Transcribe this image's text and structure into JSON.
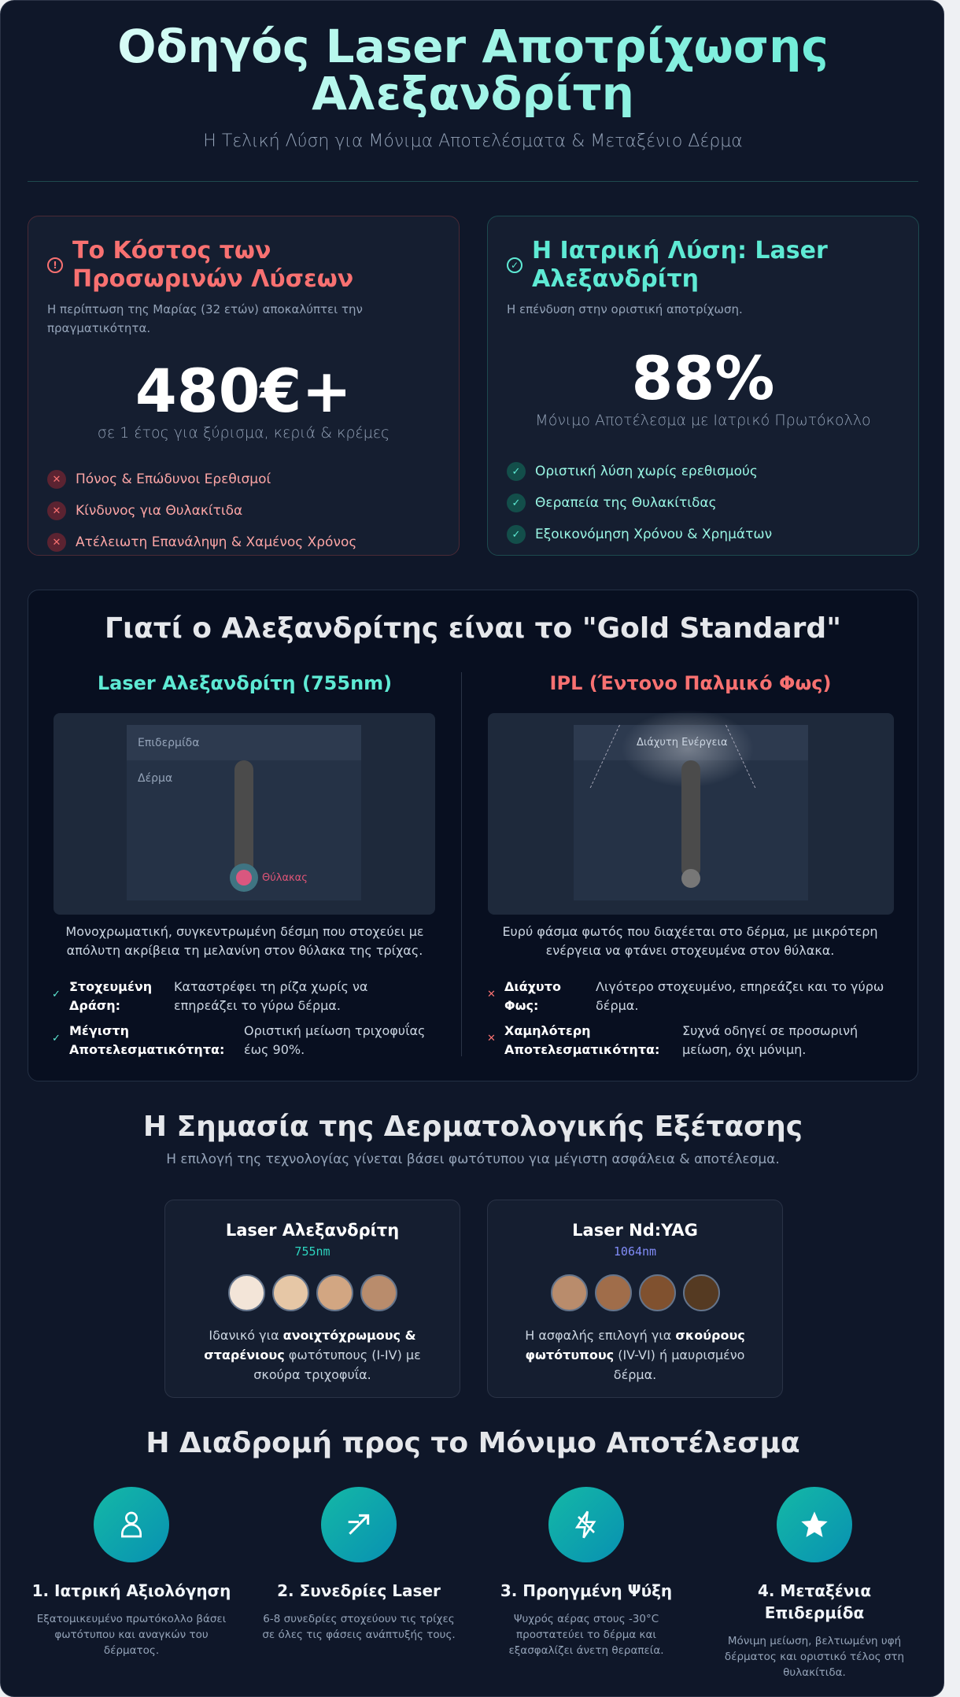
{
  "header": {
    "title": "Οδηγός Laser Αποτρίχωσης Αλεξανδρίτη",
    "subtitle": "Η Τελική Λύση για Μόνιμα Αποτελέσματα & Μεταξένιο Δέρμα"
  },
  "cost_card": {
    "icon": "alert-circle-icon",
    "title": "Το Κόστος των Προσωρινών Λύσεων",
    "desc": "Η περίπτωση της Μαρίας (32 ετών) αποκαλύπτει την πραγματικότητα.",
    "stat": "480€+",
    "stat_label": "σε 1 έτος για ξύρισμα, κεριά & κρέμες",
    "items": [
      "Πόνος & Επώδυνοι Ερεθισμοί",
      "Κίνδυνος για Θυλακίτιδα",
      "Ατέλειωτη Επανάληψη & Χαμένος Χρόνος"
    ],
    "color": "#f87171"
  },
  "solution_card": {
    "icon": "check-circle-icon",
    "title": "Η Ιατρική Λύση: Laser Αλεξανδρίτη",
    "desc": "Η επένδυση στην οριστική αποτρίχωση.",
    "stat": "88%",
    "stat_label": "Μόνιμο Αποτέλεσμα με Ιατρικό Πρωτόκολλο",
    "items": [
      "Οριστική λύση χωρίς ερεθισμούς",
      "Θεραπεία της Θυλακίτιδας",
      "Εξοικονόμηση Χρόνου & Χρημάτων"
    ],
    "color": "#5eead4"
  },
  "comparison": {
    "title": "Γιατί ο Αλεξανδρίτης είναι το \"Gold Standard\"",
    "laser": {
      "title": "Laser Αλεξανδρίτη (755nm)",
      "diagram": {
        "epidermis": "Επιδερμίδα",
        "dermis": "Δέρμα",
        "follicle": "Θύλακας"
      },
      "desc": "Μονοχρωματική, συγκεντρωμένη δέσμη που στοχεύει με απόλυτη ακρίβεια τη μελανίνη στον θύλακα της τρίχας.",
      "features": [
        {
          "label": "Στοχευμένη Δράση:",
          "text": "Καταστρέφει τη ρίζα χωρίς να επηρεάζει το γύρω δέρμα."
        },
        {
          "label": "Μέγιστη Αποτελεσματικότητα:",
          "text": "Οριστική μείωση τριχοφυΐας έως 90%."
        }
      ]
    },
    "ipl": {
      "title": "IPL (Έντονο Παλμικό Φως)",
      "diagram": {
        "energy": "Διάχυτη Ενέργεια"
      },
      "desc": "Ευρύ φάσμα φωτός που διαχέεται στο δέρμα, με μικρότερη ενέργεια να φτάνει στοχευμένα στον θύλακα.",
      "features": [
        {
          "label": "Διάχυτο Φως:",
          "text": "Λιγότερο στοχευμένο, επηρεάζει και το γύρω δέρμα."
        },
        {
          "label": "Χαμηλότερη Αποτελεσματικότητα:",
          "text": "Συχνά οδηγεί σε προσωρινή μείωση, όχι μόνιμη."
        }
      ]
    }
  },
  "exam": {
    "title": "Η Σημασία της Δερματολογικής Εξέτασης",
    "subtitle": "Η επιλογή της τεχνολογίας γίνεται βάσει φωτότυπου για μέγιστη ασφάλεια & αποτέλεσμα.",
    "cards": [
      {
        "title": "Laser Αλεξανδρίτη",
        "wavelength": "755nm",
        "wl_color": "#2dd4bf",
        "swatches": [
          "#f3e5d8",
          "#e6c7a6",
          "#d2a682",
          "#b98c6c"
        ],
        "pre": "Ιδανικό για ",
        "bold": "ανοιχτόχρωμους & σταρένιους",
        "post": " φωτότυπους (I-IV) με σκούρα τριχοφυΐα."
      },
      {
        "title": "Laser Nd:YAG",
        "wavelength": "1064nm",
        "wl_color": "#818cf8",
        "swatches": [
          "#b98c6c",
          "#a06d4a",
          "#80512f",
          "#553a22"
        ],
        "pre": "Η ασφαλής επιλογή για ",
        "bold": "σκούρους φωτότυπους",
        "post": " (IV-VI) ή μαυρισμένο δέρμα."
      }
    ]
  },
  "journey": {
    "title": "Η Διαδρομή προς το Μόνιμο Αποτέλεσμα",
    "steps": [
      {
        "icon": "user-icon",
        "title": "1. Ιατρική Αξιολόγηση",
        "desc": "Εξατομικευμένο πρωτόκολλο βάσει φωτότυπου και αναγκών του δέρματος."
      },
      {
        "icon": "laser-beam-icon",
        "title": "2. Συνεδρίες Laser",
        "desc": "6-8 συνεδρίες στοχεύουν τις τρίχες σε όλες τις φάσεις ανάπτυξής τους."
      },
      {
        "icon": "lightning-cooling-icon",
        "title": "3. Προηγμένη Ψύξη",
        "desc": "Ψυχρός αέρας στους -30°C προστατεύει το δέρμα και εξασφαλίζει άνετη θεραπεία."
      },
      {
        "icon": "star-icon",
        "title": "4. Μεταξένια Επιδερμίδα",
        "desc": "Μόνιμη μείωση, βελτιωμένη υφή δέρματος και οριστικό τέλος στη θυλακίτιδα."
      }
    ]
  }
}
